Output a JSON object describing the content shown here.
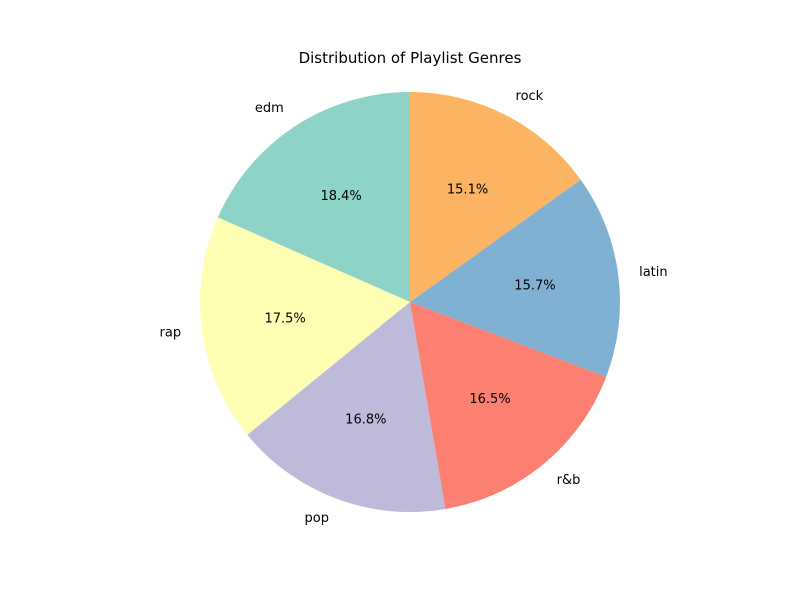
{
  "chart_data": {
    "type": "pie",
    "title": "Distribution of Playlist Genres",
    "start_angle_deg": 90,
    "direction": "counterclockwise",
    "slices": [
      {
        "label": "edm",
        "value": 18.4,
        "pct_text": "18.4%",
        "color": "#8dd3c7"
      },
      {
        "label": "rap",
        "value": 17.5,
        "pct_text": "17.5%",
        "color": "#ffffb3"
      },
      {
        "label": "pop",
        "value": 16.8,
        "pct_text": "16.8%",
        "color": "#bebada"
      },
      {
        "label": "r&b",
        "value": 16.5,
        "pct_text": "16.5%",
        "color": "#fb8072"
      },
      {
        "label": "latin",
        "value": 15.7,
        "pct_text": "15.7%",
        "color": "#80b1d3"
      },
      {
        "label": "rock",
        "value": 15.1,
        "pct_text": "15.1%",
        "color": "#fdb462"
      }
    ]
  }
}
